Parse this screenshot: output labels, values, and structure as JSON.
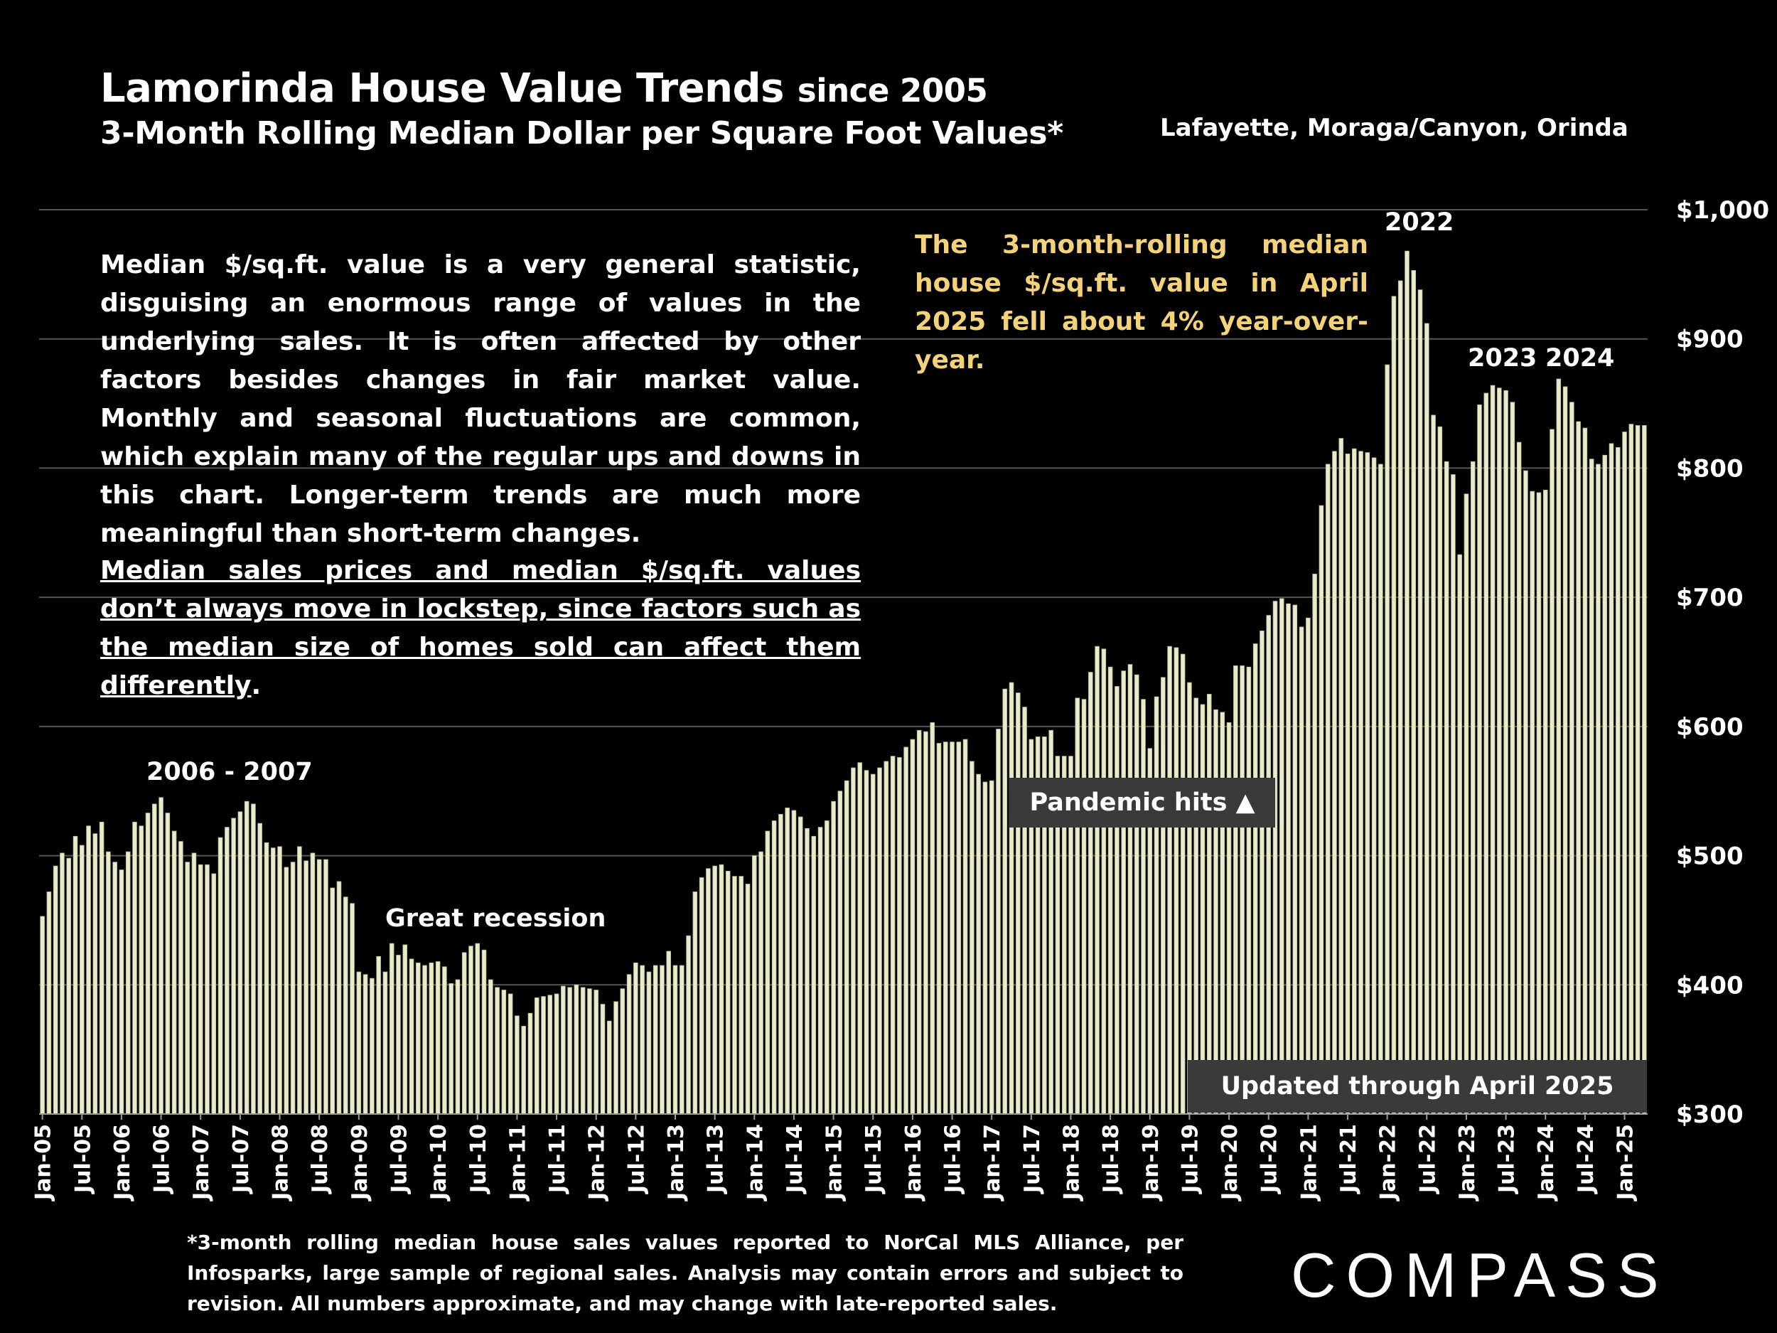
{
  "header": {
    "title_main": "Lamorinda House Value Trends",
    "title_suffix": "since 2005",
    "subtitle": "3-Month Rolling Median Dollar per Square Foot Values*",
    "region": "Lafayette, Moraga/Canyon, Orinda"
  },
  "notes": {
    "paragraph1": "Median $/sq.ft. value is a very general statistic, disguising an enormous range of values in the underlying sales. It is often affected by other factors besides changes in fair market value. Monthly and seasonal fluctuations are common, which explain many of the regular ups and downs in this chart. Longer-term trends are much more meaningful than short-term changes.",
    "paragraph2": "Median sales prices and median $/sq.ft. values don’t always move in lockstep, since factors such as the median size of homes sold can affect them differently",
    "paragraph2_end": ".",
    "callout": "The 3-month-rolling median house $/sq.ft. value in April 2025 fell about 4% year-over-year."
  },
  "annotations": {
    "label_2006": "2006 - 2007",
    "label_recession": "Great recession",
    "label_2022": "2022",
    "label_2023": "2023",
    "label_2024": "2024",
    "pandemic": "Pandemic hits ▲",
    "updated": "Updated through April 2025"
  },
  "footer": "*3-month rolling median house sales values reported to NorCal MLS Alliance, per Infosparks, large sample of regional sales. Analysis may contain errors and subject to revision. All numbers approximate, and may change with late-reported sales.",
  "logo": "COMPASS",
  "colors": {
    "bar": "#e8ebc9",
    "bar_outline": "#b6b88f",
    "grid": "#555555",
    "callout": "#f3d27a",
    "background": "#000000"
  },
  "chart_data": {
    "type": "bar",
    "title": "Lamorinda House Value Trends since 2005",
    "ylabel": "",
    "ylim": [
      300,
      1000
    ],
    "yticks": [
      "$300",
      "$400",
      "$500",
      "$600",
      "$700",
      "$800",
      "$900",
      "$1,000"
    ],
    "grid": true,
    "x_start": "Jan-05",
    "x_end": "Apr-25",
    "xtick_labels": [
      "Jan-05",
      "Jul-05",
      "Jan-06",
      "Jul-06",
      "Jan-07",
      "Jul-07",
      "Jan-08",
      "Jul-08",
      "Jan-09",
      "Jul-09",
      "Jan-10",
      "Jul-10",
      "Jan-11",
      "Jul-11",
      "Jan-12",
      "Jul-12",
      "Jan-13",
      "Jul-13",
      "Jan-14",
      "Jul-14",
      "Jan-15",
      "Jul-15",
      "Jan-16",
      "Jul-16",
      "Jan-17",
      "Jul-17",
      "Jan-18",
      "Jul-18",
      "Jan-19",
      "Jul-19",
      "Jan-20",
      "Jul-20",
      "Jan-21",
      "Jul-21",
      "Jan-22",
      "Jul-22",
      "Jan-23",
      "Jul-23",
      "Jan-24",
      "Jul-24",
      "Jan-25"
    ],
    "series": [
      {
        "values": [
          453,
          472,
          492,
          502,
          498,
          515,
          508,
          523,
          517,
          526,
          503,
          495,
          489,
          503,
          526,
          523,
          533,
          540,
          545,
          533,
          519,
          511,
          495,
          502,
          493,
          493,
          486,
          514,
          522,
          529,
          534,
          542,
          540,
          525,
          510,
          506,
          507,
          491,
          495,
          507,
          496,
          502,
          497,
          497,
          475,
          480,
          468,
          463,
          410,
          408,
          405,
          422,
          410,
          432,
          423,
          431,
          420,
          417,
          415,
          417,
          418,
          414,
          401,
          404,
          425,
          430,
          432,
          427,
          404,
          398,
          396,
          393,
          376,
          368,
          378,
          390,
          391,
          392,
          393,
          399,
          398,
          400,
          398,
          397,
          396,
          385,
          372,
          387,
          397,
          408,
          417,
          415,
          410,
          415,
          415,
          426,
          415,
          415,
          438,
          472,
          483,
          490,
          492,
          493,
          488,
          484,
          484,
          478,
          500,
          503,
          519,
          527,
          532,
          537,
          535,
          530,
          521,
          515,
          522,
          527,
          542,
          550,
          558,
          568,
          572,
          566,
          563,
          568,
          573,
          577,
          576,
          584,
          590,
          597,
          596,
          603,
          587,
          588,
          588,
          588,
          590,
          573,
          563,
          557,
          558,
          598,
          629,
          634,
          626,
          615,
          590,
          592,
          592,
          597,
          577,
          577,
          577,
          622,
          621,
          642,
          662,
          660,
          646,
          631,
          643,
          648,
          640,
          621,
          583,
          623,
          638,
          662,
          661,
          656,
          634,
          622,
          617,
          625,
          613,
          611,
          603,
          647,
          647,
          646,
          664,
          674,
          686,
          697,
          699,
          695,
          694,
          677,
          684,
          718,
          771,
          803,
          813,
          823,
          811,
          815,
          813,
          812,
          808,
          803,
          880,
          933,
          945,
          968,
          953,
          938,
          912,
          841,
          832,
          805,
          795,
          733,
          780,
          805,
          849,
          858,
          864,
          862,
          860,
          851,
          820,
          798,
          782,
          781,
          783,
          830,
          869,
          863,
          851,
          836,
          831,
          807,
          803,
          810,
          819,
          816,
          828,
          834,
          833,
          833
        ]
      }
    ]
  }
}
